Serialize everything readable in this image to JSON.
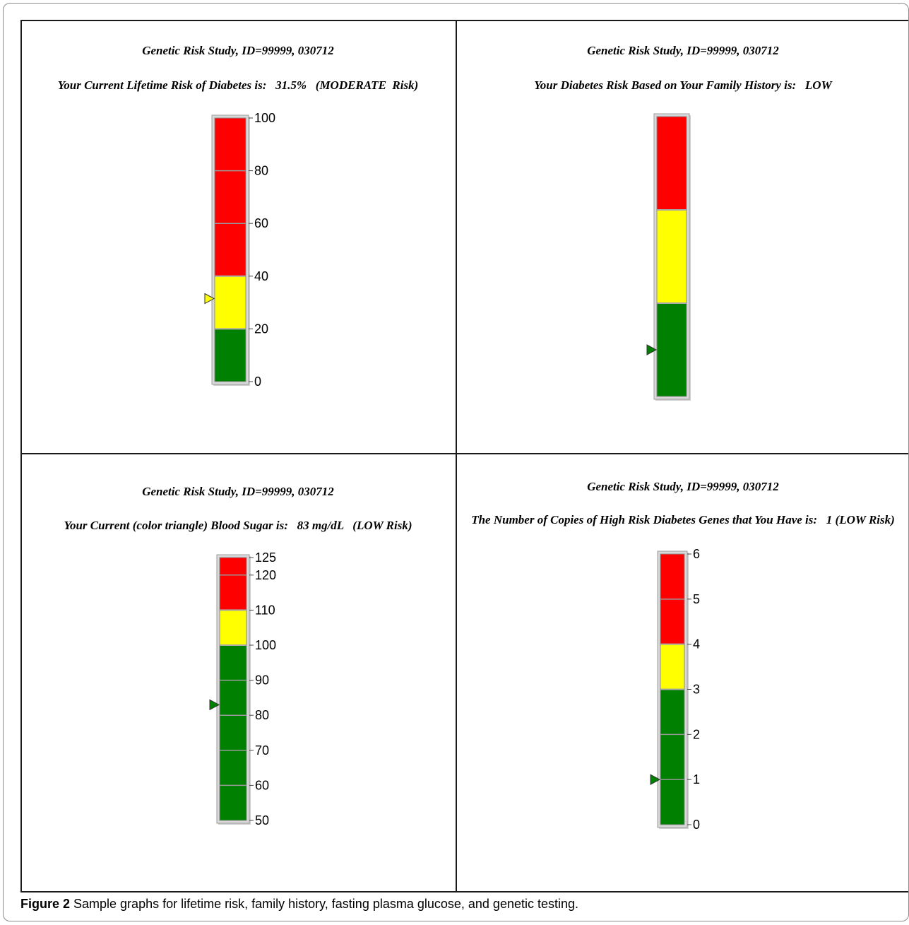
{
  "caption": {
    "label": "Figure 2",
    "text": " Sample graphs for lifetime risk, family history, fasting plasma glucose, and genetic testing."
  },
  "colors": {
    "red": "#ff0000",
    "yellow": "#ffff00",
    "green": "#008000",
    "grid_line": "#9a9a9a"
  },
  "chart_data": [
    {
      "type": "bar",
      "title": "Genetic Risk Study, ID=99999, 030712",
      "subtitle": "Your Current Lifetime Risk of Diabetes is:   31.5%   (MODERATE  Risk)",
      "ylim": [
        0,
        100
      ],
      "ticks": [
        0,
        20,
        40,
        60,
        80,
        100
      ],
      "show_tick_labels": true,
      "grid": [
        20,
        40,
        60,
        80
      ],
      "bands": [
        {
          "from": 0,
          "to": 20,
          "color": "green"
        },
        {
          "from": 20,
          "to": 40,
          "color": "yellow"
        },
        {
          "from": 40,
          "to": 100,
          "color": "red"
        }
      ],
      "marker": {
        "value": 31.5,
        "color": "yellow"
      }
    },
    {
      "type": "bar",
      "title": "Genetic Risk Study, ID=99999, 030712",
      "subtitle": "Your Diabetes Risk Based on Your Family History is:   LOW",
      "ylim": [
        0,
        3
      ],
      "ticks": [],
      "show_tick_labels": false,
      "grid": [],
      "bands": [
        {
          "from": 0,
          "to": 1,
          "color": "green"
        },
        {
          "from": 1,
          "to": 2,
          "color": "yellow"
        },
        {
          "from": 2,
          "to": 3,
          "color": "red"
        }
      ],
      "marker": {
        "value": 0.5,
        "color": "green"
      }
    },
    {
      "type": "bar",
      "title": "Genetic Risk Study, ID=99999, 030712",
      "subtitle": "Your Current (color triangle) Blood Sugar is:   83 mg/dL   (LOW Risk)",
      "ylim": [
        50,
        125
      ],
      "ticks": [
        50,
        60,
        70,
        80,
        90,
        100,
        110,
        120,
        125
      ],
      "show_tick_labels": true,
      "grid": [
        60,
        70,
        80,
        90,
        120
      ],
      "bands": [
        {
          "from": 50,
          "to": 100,
          "color": "green"
        },
        {
          "from": 100,
          "to": 110,
          "color": "yellow"
        },
        {
          "from": 110,
          "to": 125,
          "color": "red"
        }
      ],
      "marker": {
        "value": 83,
        "color": "green"
      }
    },
    {
      "type": "bar",
      "title": "Genetic Risk Study, ID=99999, 030712",
      "subtitle": "The Number of Copies of High Risk Diabetes Genes that You Have is:   1 (LOW Risk)",
      "ylim": [
        0,
        6
      ],
      "ticks": [
        0,
        1,
        2,
        3,
        4,
        5,
        6
      ],
      "show_tick_labels": true,
      "grid": [
        1,
        2,
        5
      ],
      "bands": [
        {
          "from": 0,
          "to": 3,
          "color": "green"
        },
        {
          "from": 3,
          "to": 4,
          "color": "yellow"
        },
        {
          "from": 4,
          "to": 6,
          "color": "red"
        }
      ],
      "marker": {
        "value": 1,
        "color": "green"
      }
    }
  ]
}
